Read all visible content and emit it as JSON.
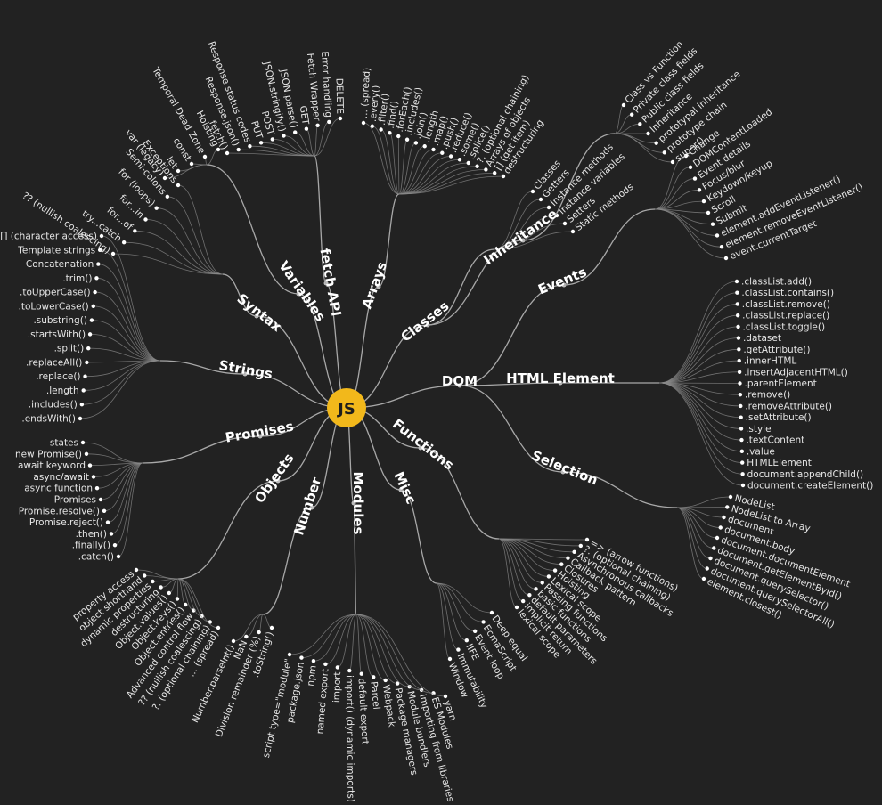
{
  "center": {
    "label": "JS",
    "color": "#f2b81b"
  },
  "branches": [
    {
      "id": "syntax",
      "label": "Syntax",
      "items": [
        "?? (nullish coalescing)",
        "try...catch",
        "for...of",
        "for...in",
        "for (loops)",
        "Semi-colons",
        "Exceptions"
      ]
    },
    {
      "id": "variables",
      "label": "Variables",
      "items": [
        "var (legacy)",
        "let",
        "const",
        "Temporal Dead Zone",
        "Hoisting"
      ]
    },
    {
      "id": "fetch",
      "label": "fetch API",
      "items": [
        "fetch()",
        "Response.json()",
        "Response status codes",
        "PUT",
        "POST",
        "JSON.stringify()",
        "JSON.parse()",
        "GET",
        "Fetch Wrapper",
        "Error handling",
        "DELETE"
      ]
    },
    {
      "id": "arrays",
      "label": "Arrays",
      "items": [
        "... (spread)",
        ".every()",
        ".filter()",
        ".find()",
        ".forEach()",
        ".includes()",
        ".join()",
        ".length",
        ".map()",
        ".push()",
        ".reduce()",
        ".some()",
        ".splice()",
        "?. (optional chaining)",
        "Arrays of objects",
        "[] (get item)",
        "destructuring"
      ]
    },
    {
      "id": "classes",
      "label": "Classes",
      "subgroups": [
        {
          "id": "inheritance",
          "label": "Inheritance",
          "items": [
            "Class vs Function",
            "Private class fields",
            "Public class fields",
            "Inheritance",
            "prototypal inheritance",
            "prototype chain",
            "super()"
          ]
        }
      ],
      "items": [
        "Classes",
        "Getters",
        "Instance methods",
        "Instance variables",
        "Setters",
        "Static methods"
      ]
    },
    {
      "id": "dom",
      "label": "DOM",
      "subgroups": [
        {
          "id": "events",
          "label": "Events",
          "items": [
            "Change",
            "DOMContentLoaded",
            "Event details",
            "Focus/blur",
            "Keydown/keyup",
            "Scroll",
            "Submit",
            "element.addEventListener()",
            "element.removeEventListener()",
            "event.currentTarget"
          ]
        },
        {
          "id": "html-element",
          "label": "HTML Element",
          "items": [
            ".classList.add()",
            ".classList.contains()",
            ".classList.remove()",
            ".classList.replace()",
            ".classList.toggle()",
            ".dataset",
            ".getAttribute()",
            ".innerHTML",
            ".insertAdjacentHTML()",
            ".parentElement",
            ".remove()",
            ".removeAttribute()",
            ".setAttribute()",
            ".style",
            ".textContent",
            ".value",
            "HTMLElement",
            "document.appendChild()",
            "document.createElement()"
          ]
        },
        {
          "id": "selection",
          "label": "Selection",
          "items": [
            "NodeList",
            "NodeList to Array",
            "document",
            "document.body",
            "document.documentElement",
            "document.getElementById()",
            "document.querySelector()",
            "document.querySelectorAll()",
            "element.closest()"
          ]
        }
      ]
    },
    {
      "id": "functions",
      "label": "Functions",
      "items": [
        "=> (arrow functions)",
        "?. (optional chaining)",
        "Asynchronous callbacks",
        "Callback pattern",
        "Closures",
        "Hoisting",
        "Lexical scope",
        "Passing functions",
        "basic functions",
        "default parameters",
        "implicit return",
        "lexical scope"
      ]
    },
    {
      "id": "misc",
      "label": "Misc",
      "items": [
        "Deep equal",
        "EcmaScript",
        "Event loop",
        "IIFE",
        "Immutability",
        "Window"
      ]
    },
    {
      "id": "modules",
      "label": "Modules",
      "items": [
        "script type=\"module\"",
        "package.json",
        "npm",
        "named export",
        "import",
        "import() (dynamic imports)",
        "default export",
        "Parcel",
        "Webpack",
        "Package managers",
        "Module bundlers",
        "Importing from libraries",
        "ES Modules",
        "yarn"
      ]
    },
    {
      "id": "number",
      "label": "Number",
      "items": [
        "Number.parseInt()",
        "NaN",
        "Division remainder (%)",
        ".toString()"
      ]
    },
    {
      "id": "objects",
      "label": "Objects",
      "items": [
        "property access",
        "object shorthand",
        "dynamic properties",
        "destructuring",
        "Object.values()",
        "Object.keys()",
        "Object.entries()",
        "Advanced control flow",
        "?? (nullish coalescing)",
        "?. (optional chaining)",
        "... (spread)"
      ]
    },
    {
      "id": "promises",
      "label": "Promises",
      "items": [
        "states",
        "new Promise()",
        "await keyword",
        "async/await",
        "async function",
        "Promises",
        "Promise.resolve()",
        "Promise.reject()",
        ".then()",
        ".finally()",
        ".catch()"
      ]
    },
    {
      "id": "strings",
      "label": "Strings",
      "items": [
        "[] (character access)",
        "Template strings",
        "Concatenation",
        ".trim()",
        ".toUpperCase()",
        ".toLowerCase()",
        ".substring()",
        ".startsWith()",
        ".split()",
        ".replaceAll()",
        ".replace()",
        ".length",
        ".includes()",
        ".endsWith()"
      ]
    }
  ]
}
